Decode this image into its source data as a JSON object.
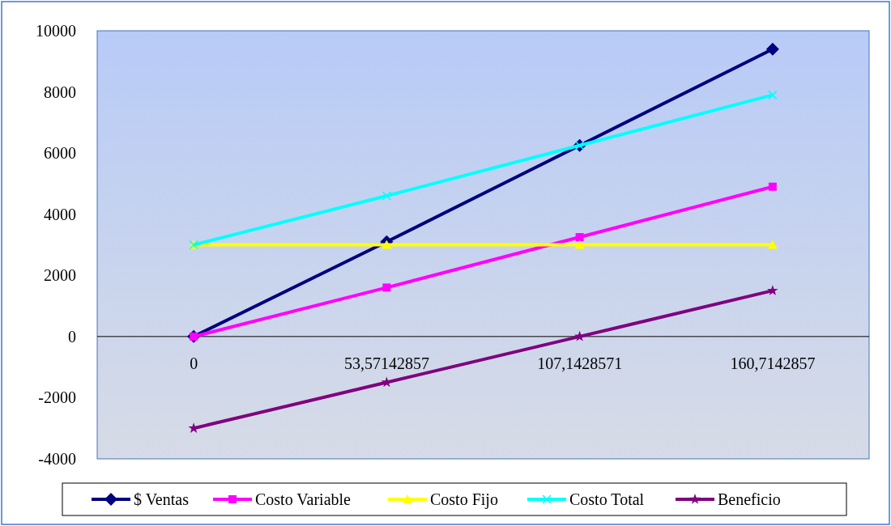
{
  "chart_data": {
    "type": "line",
    "categories": [
      "0",
      "53,57142857",
      "107,1428571",
      "160,7142857"
    ],
    "ylim": [
      -4000,
      10000
    ],
    "yticks": [
      -4000,
      -2000,
      0,
      2000,
      4000,
      6000,
      8000,
      10000
    ],
    "grid": false,
    "legend": "bottom",
    "series": [
      {
        "name": "$ Ventas",
        "color": "#000080",
        "marker": "diamond",
        "values": [
          0,
          3100,
          6250,
          9400
        ]
      },
      {
        "name": "Costo Variable",
        "color": "#ff00ff",
        "marker": "square",
        "values": [
          0,
          1600,
          3250,
          4900
        ]
      },
      {
        "name": "Costo Fijo",
        "color": "#ffff00",
        "marker": "triangle",
        "values": [
          3000,
          3000,
          3000,
          3000
        ]
      },
      {
        "name": "Costo Total",
        "color": "#00ffff",
        "marker": "cross",
        "values": [
          3000,
          4600,
          6250,
          7900
        ]
      },
      {
        "name": "Beneficio",
        "color": "#800080",
        "marker": "star",
        "values": [
          -3000,
          -1500,
          0,
          1500
        ]
      }
    ]
  }
}
